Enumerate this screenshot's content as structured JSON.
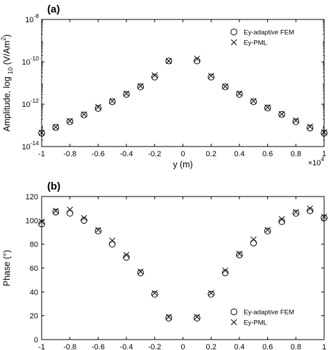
{
  "chart_data": [
    {
      "type": "scatter",
      "panel_label": "(a)",
      "xlabel": "y  (m)",
      "ylabel_main": "Amplitude, log",
      "ylabel_sub": "10",
      "ylabel_unit": "(V/Am",
      "ylabel_unit_sup": "2",
      "ylabel_unit_close": ")",
      "x_exponent_base": "×10",
      "x_exponent_power": "4",
      "x_scale": "linear",
      "y_scale": "log",
      "xlim": [
        -1,
        1
      ],
      "ylim": [
        1e-14,
        1e-08
      ],
      "x_ticks": [
        -1,
        -0.8,
        -0.6,
        -0.4,
        -0.2,
        0,
        0.2,
        0.4,
        0.6,
        0.8,
        1
      ],
      "x_tick_labels": [
        "-1",
        "-0.8",
        "-0.6",
        "-0.4",
        "-0.2",
        "0",
        "0.2",
        "0.4",
        "0.6",
        "0.8",
        "1"
      ],
      "y_ticks": [
        1e-14,
        1e-12,
        1e-10,
        1e-08
      ],
      "y_tick_labels": [
        {
          "base": "10",
          "exp": "-14"
        },
        {
          "base": "10",
          "exp": "-12"
        },
        {
          "base": "10",
          "exp": "-10"
        },
        {
          "base": "10",
          "exp": "-8"
        }
      ],
      "legend_position": "top-right",
      "series": [
        {
          "name": "Ey-adaptive FEM",
          "marker": "circle",
          "x": [
            -1,
            -0.9,
            -0.8,
            -0.7,
            -0.6,
            -0.5,
            -0.4,
            -0.3,
            -0.2,
            -0.1,
            0.1,
            0.2,
            0.3,
            0.4,
            0.5,
            0.6,
            0.7,
            0.8,
            0.9,
            1
          ],
          "y": [
            4.3e-14,
            8e-14,
            1.5e-13,
            3.1e-13,
            6.3e-13,
            1.3e-12,
            2.9e-12,
            6.6e-12,
            1.9e-11,
            1.1e-10,
            1.1e-10,
            1.9e-11,
            6.6e-12,
            2.9e-12,
            1.3e-12,
            6.6e-13,
            3.3e-13,
            1.5e-13,
            7.5e-14,
            4.3e-14
          ]
        },
        {
          "name": "Ey-PML",
          "marker": "x",
          "x": [
            -1,
            -0.9,
            -0.8,
            -0.7,
            -0.6,
            -0.5,
            -0.4,
            -0.3,
            -0.2,
            -0.1,
            0.1,
            0.2,
            0.3,
            0.4,
            0.5,
            0.6,
            0.7,
            0.8,
            0.9,
            1
          ],
          "y": [
            4.5e-14,
            8.3e-14,
            1.6e-13,
            3.3e-13,
            7.4e-13,
            1.4e-12,
            3.2e-12,
            7.2e-12,
            2.3e-11,
            1.1e-10,
            1.4e-10,
            2.2e-11,
            6.9e-12,
            3.2e-12,
            1.4e-12,
            7.1e-13,
            3.4e-13,
            1.7e-13,
            8.7e-14,
            4.7e-14
          ]
        }
      ]
    },
    {
      "type": "scatter",
      "panel_label": "(b)",
      "xlabel": "y  (m)",
      "ylabel_main": "Phase (°)",
      "x_exponent_base": "×10",
      "x_exponent_power": "4",
      "x_scale": "linear",
      "y_scale": "linear",
      "xlim": [
        -1,
        1
      ],
      "ylim": [
        0,
        120
      ],
      "x_ticks": [
        -1,
        -0.8,
        -0.6,
        -0.4,
        -0.2,
        0,
        0.2,
        0.4,
        0.6,
        0.8,
        1
      ],
      "x_tick_labels": [
        "-1",
        "-0.8",
        "-0.6",
        "-0.4",
        "-0.2",
        "0",
        "0.2",
        "0.4",
        "0.6",
        "0.8",
        "1"
      ],
      "y_ticks": [
        0,
        20,
        40,
        60,
        80,
        100,
        120
      ],
      "y_tick_labels": [
        "0",
        "20",
        "40",
        "60",
        "80",
        "100",
        "120"
      ],
      "legend_position": "bottom-right",
      "series": [
        {
          "name": "Ey-adaptive FEM",
          "marker": "circle",
          "x": [
            -1,
            -0.9,
            -0.8,
            -0.7,
            -0.6,
            -0.5,
            -0.4,
            -0.3,
            -0.2,
            -0.1,
            0.1,
            0.2,
            0.3,
            0.4,
            0.5,
            0.6,
            0.7,
            0.8,
            0.9,
            1
          ],
          "y": [
            97,
            107,
            106,
            100,
            91,
            80,
            69,
            56,
            38,
            18,
            18,
            38,
            56,
            71,
            81,
            91,
            99,
            106,
            108,
            102
          ]
        },
        {
          "name": "Ey-PML",
          "marker": "x",
          "x": [
            -1,
            -0.9,
            -0.8,
            -0.7,
            -0.6,
            -0.5,
            -0.4,
            -0.3,
            -0.2,
            -0.1,
            0.1,
            0.2,
            0.3,
            0.4,
            0.5,
            0.6,
            0.7,
            0.8,
            0.9,
            1
          ],
          "y": [
            99,
            108,
            109,
            102,
            92,
            83,
            71,
            57,
            39,
            19,
            19,
            39,
            58,
            72,
            84,
            92,
            101,
            107,
            110,
            103
          ]
        }
      ]
    }
  ]
}
